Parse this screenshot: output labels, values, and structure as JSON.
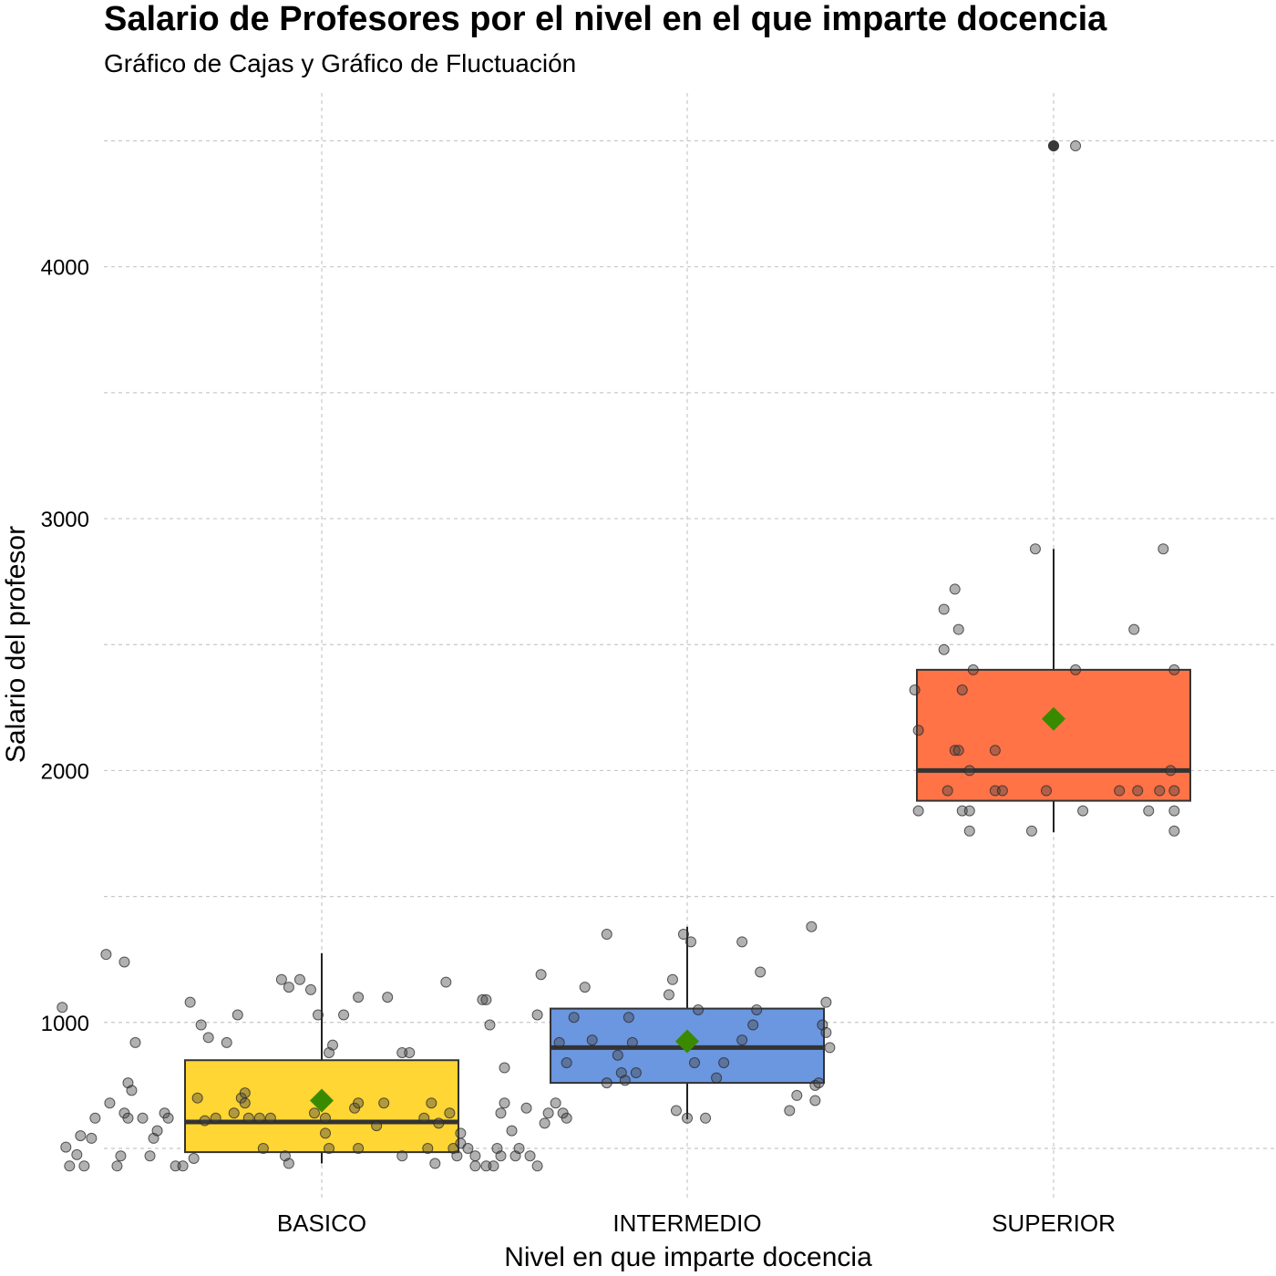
{
  "chart_data": {
    "type": "box",
    "title": "Salario de Profesores por el nivel en el que imparte docencia",
    "subtitle": "Gráfico de Cajas y Gráfico de Fluctuación",
    "xlabel": "Nivel en que imparte docencia",
    "ylabel": "Salario del profesor",
    "categories": [
      "BASICO",
      "INTERMEDIO",
      "SUPERIOR"
    ],
    "ylim": [
      290,
      4690
    ],
    "yticks": [
      1000,
      2000,
      3000,
      4000
    ],
    "minor_yticks": [
      500,
      1500,
      2500,
      3500,
      4500
    ],
    "grid": true,
    "box_colors": [
      "#FFD633",
      "#6B96E0",
      "#FF7347"
    ],
    "mean_marker_color": "#3A8A00",
    "boxes": [
      {
        "category": "BASICO",
        "lower_whisker": 440,
        "q1": 485,
        "median": 605,
        "q3": 850,
        "upper_whisker": 1275,
        "mean": 690,
        "outliers": []
      },
      {
        "category": "INTERMEDIO",
        "lower_whisker": 615,
        "q1": 760,
        "median": 900,
        "q3": 1055,
        "upper_whisker": 1380,
        "mean": 925,
        "outliers": []
      },
      {
        "category": "SUPERIOR",
        "lower_whisker": 1755,
        "q1": 1880,
        "median": 2000,
        "q3": 2400,
        "upper_whisker": 2880,
        "mean": 2205,
        "outliers": [
          4480
        ]
      }
    ],
    "jitter_points": [
      {
        "category": "BASICO",
        "points": [
          [
            -0.33,
            1060
          ],
          [
            -0.32,
            505
          ],
          [
            -0.31,
            430
          ],
          [
            -0.29,
            475
          ],
          [
            -0.28,
            550
          ],
          [
            -0.27,
            430
          ],
          [
            -0.25,
            540
          ],
          [
            -0.24,
            620
          ],
          [
            -0.21,
            1270
          ],
          [
            -0.2,
            680
          ],
          [
            -0.18,
            430
          ],
          [
            -0.17,
            470
          ],
          [
            -0.16,
            640
          ],
          [
            -0.16,
            1240
          ],
          [
            -0.15,
            760
          ],
          [
            -0.15,
            620
          ],
          [
            -0.14,
            730
          ],
          [
            -0.13,
            920
          ],
          [
            -0.11,
            620
          ],
          [
            -0.09,
            470
          ],
          [
            -0.08,
            540
          ],
          [
            -0.07,
            570
          ],
          [
            -0.05,
            640
          ],
          [
            -0.04,
            620
          ],
          [
            -0.02,
            430
          ],
          [
            0.0,
            430
          ],
          [
            0.02,
            1080
          ],
          [
            0.03,
            460
          ],
          [
            0.04,
            700
          ],
          [
            0.05,
            990
          ],
          [
            0.06,
            610
          ],
          [
            0.07,
            940
          ],
          [
            0.09,
            620
          ],
          [
            0.12,
            920
          ],
          [
            0.14,
            640
          ],
          [
            0.15,
            1030
          ],
          [
            0.16,
            700
          ],
          [
            0.17,
            720
          ],
          [
            0.17,
            680
          ],
          [
            0.18,
            620
          ],
          [
            0.21,
            620
          ],
          [
            0.22,
            500
          ],
          [
            0.24,
            620
          ],
          [
            0.27,
            1170
          ],
          [
            0.28,
            470
          ],
          [
            0.29,
            1140
          ],
          [
            0.29,
            440
          ],
          [
            0.32,
            1170
          ],
          [
            0.35,
            1130
          ],
          [
            0.36,
            640
          ],
          [
            0.37,
            1030
          ],
          [
            0.39,
            560
          ],
          [
            0.39,
            620
          ],
          [
            0.4,
            880
          ],
          [
            0.4,
            500
          ],
          [
            0.41,
            910
          ],
          [
            0.44,
            1030
          ],
          [
            0.47,
            660
          ],
          [
            0.48,
            1100
          ],
          [
            0.48,
            500
          ],
          [
            0.48,
            680
          ],
          [
            0.53,
            590
          ],
          [
            0.55,
            680
          ],
          [
            0.56,
            1100
          ],
          [
            0.6,
            880
          ],
          [
            0.6,
            470
          ],
          [
            0.62,
            880
          ],
          [
            0.66,
            620
          ],
          [
            0.67,
            500
          ],
          [
            0.68,
            680
          ],
          [
            0.69,
            440
          ],
          [
            0.7,
            600
          ],
          [
            0.72,
            1160
          ],
          [
            0.73,
            640
          ],
          [
            0.74,
            500
          ],
          [
            0.75,
            470
          ],
          [
            0.76,
            560
          ],
          [
            0.76,
            520
          ],
          [
            0.78,
            500
          ],
          [
            0.8,
            470
          ],
          [
            0.8,
            430
          ],
          [
            0.82,
            1090
          ],
          [
            0.83,
            1090
          ],
          [
            0.83,
            430
          ],
          [
            0.84,
            990
          ],
          [
            0.85,
            430
          ],
          [
            0.86,
            500
          ],
          [
            0.87,
            470
          ],
          [
            0.87,
            640
          ],
          [
            0.88,
            820
          ],
          [
            0.88,
            680
          ],
          [
            0.9,
            570
          ],
          [
            0.91,
            470
          ],
          [
            0.92,
            500
          ],
          [
            0.94,
            660
          ],
          [
            0.95,
            470
          ],
          [
            0.97,
            1030
          ],
          [
            0.97,
            430
          ],
          [
            0.98,
            1190
          ],
          [
            0.99,
            600
          ],
          [
            1.0,
            640
          ],
          [
            1.03,
            920
          ],
          [
            1.04,
            640
          ]
        ]
      },
      {
        "category": "INTERMEDIO",
        "points": [
          [
            -0.36,
            680
          ],
          [
            -0.33,
            620
          ],
          [
            -0.33,
            840
          ],
          [
            -0.31,
            1020
          ],
          [
            -0.28,
            1140
          ],
          [
            -0.26,
            930
          ],
          [
            -0.22,
            760
          ],
          [
            -0.22,
            1350
          ],
          [
            -0.19,
            870
          ],
          [
            -0.18,
            800
          ],
          [
            -0.17,
            770
          ],
          [
            -0.16,
            1020
          ],
          [
            -0.15,
            920
          ],
          [
            -0.14,
            800
          ],
          [
            -0.05,
            1110
          ],
          [
            -0.04,
            1170
          ],
          [
            -0.03,
            650
          ],
          [
            -0.01,
            1350
          ],
          [
            0.0,
            620
          ],
          [
            0.01,
            1320
          ],
          [
            0.02,
            840
          ],
          [
            0.03,
            1050
          ],
          [
            0.05,
            620
          ],
          [
            0.08,
            780
          ],
          [
            0.1,
            840
          ],
          [
            0.15,
            930
          ],
          [
            0.15,
            1320
          ],
          [
            0.18,
            990
          ],
          [
            0.19,
            1050
          ],
          [
            0.2,
            1200
          ],
          [
            0.28,
            650
          ],
          [
            0.3,
            710
          ],
          [
            0.34,
            1380
          ],
          [
            0.35,
            690
          ],
          [
            0.35,
            750
          ],
          [
            0.36,
            760
          ],
          [
            0.37,
            990
          ],
          [
            0.38,
            960
          ],
          [
            0.38,
            1080
          ],
          [
            0.39,
            900
          ]
        ]
      },
      {
        "category": "SUPERIOR",
        "points": [
          [
            -0.38,
            2320
          ],
          [
            -0.37,
            2160
          ],
          [
            -0.37,
            1840
          ],
          [
            -0.3,
            2640
          ],
          [
            -0.3,
            2480
          ],
          [
            -0.29,
            1920
          ],
          [
            -0.27,
            2720
          ],
          [
            -0.27,
            2080
          ],
          [
            -0.26,
            2080
          ],
          [
            -0.26,
            2560
          ],
          [
            -0.25,
            1840
          ],
          [
            -0.25,
            2320
          ],
          [
            -0.23,
            1840
          ],
          [
            -0.23,
            2000
          ],
          [
            -0.23,
            1760
          ],
          [
            -0.22,
            2400
          ],
          [
            -0.16,
            2080
          ],
          [
            -0.16,
            1920
          ],
          [
            -0.14,
            1920
          ],
          [
            -0.06,
            1760
          ],
          [
            -0.05,
            2880
          ],
          [
            -0.02,
            1920
          ],
          [
            0.0,
            4480
          ],
          [
            0.0,
            4480
          ],
          [
            0.06,
            4480
          ],
          [
            0.06,
            2400
          ],
          [
            0.08,
            1840
          ],
          [
            0.18,
            1920
          ],
          [
            0.22,
            2560
          ],
          [
            0.23,
            1920
          ],
          [
            0.26,
            1840
          ],
          [
            0.29,
            1920
          ],
          [
            0.3,
            2880
          ],
          [
            0.32,
            2000
          ],
          [
            0.33,
            2400
          ],
          [
            0.33,
            1840
          ],
          [
            0.33,
            1760
          ],
          [
            0.33,
            1920
          ]
        ]
      }
    ]
  }
}
